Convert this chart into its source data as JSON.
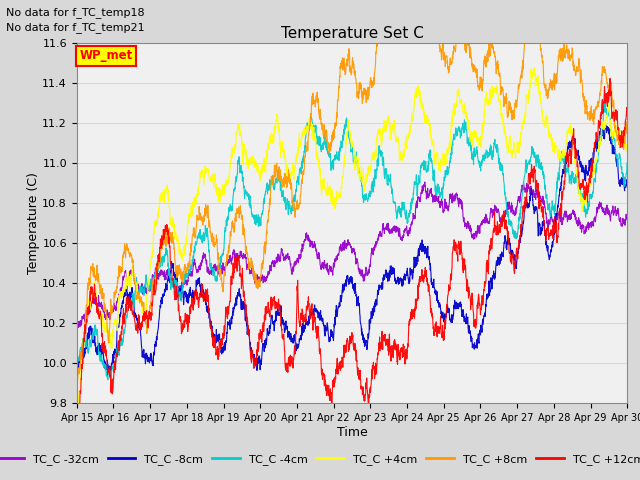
{
  "title": "Temperature Set C",
  "xlabel": "Time",
  "ylabel": "Temperature (C)",
  "ylim": [
    9.8,
    11.6
  ],
  "note_lines": [
    "No data for f_TC_temp18",
    "No data for f_TC_temp21"
  ],
  "wp_met_label": "WP_met",
  "wp_met_color": "#ff0000",
  "wp_met_bg": "#ffff00",
  "xtick_labels": [
    "Apr 15",
    "Apr 16",
    "Apr 17",
    "Apr 18",
    "Apr 19",
    "Apr 20",
    "Apr 21",
    "Apr 22",
    "Apr 23",
    "Apr 24",
    "Apr 25",
    "Apr 26",
    "Apr 27",
    "Apr 28",
    "Apr 29",
    "Apr 30"
  ],
  "series": [
    {
      "label": "TC_C -32cm",
      "color": "#9900cc"
    },
    {
      "label": "TC_C -8cm",
      "color": "#0000cc"
    },
    {
      "label": "TC_C -4cm",
      "color": "#00cccc"
    },
    {
      "label": "TC_C +4cm",
      "color": "#ffff00"
    },
    {
      "label": "TC_C +8cm",
      "color": "#ff9900"
    },
    {
      "label": "TC_C +12cm",
      "color": "#ff0000"
    }
  ],
  "grid_color": "#cccccc",
  "bg_color": "#d8d8d8",
  "plot_bg": "#f0f0f0"
}
